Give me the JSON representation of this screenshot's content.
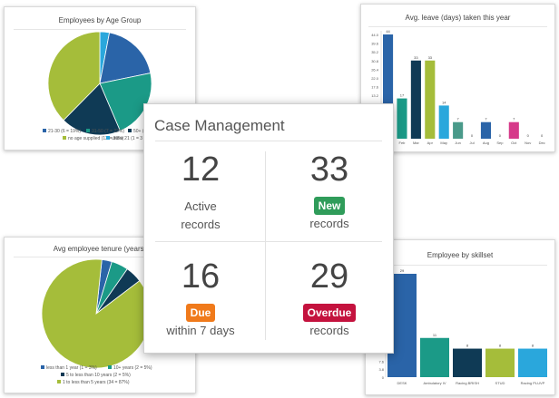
{
  "colors": {
    "navy": "#0f3a55",
    "blue": "#2a64a8",
    "teal": "#1b9a87",
    "olive": "#a5bd3a",
    "lightblue": "#2aa7dc",
    "pink": "#d63a8a",
    "new_badge": "#2f9c5a",
    "due_badge": "#f07a1b",
    "overdue_badge": "#c4123e"
  },
  "age_chart": {
    "title": "Employees by Age Group",
    "chart_data": {
      "type": "pie",
      "title": "Employees by Age Group",
      "slices": [
        {
          "name": "21-30 (6 = 19%)",
          "value": 19,
          "color": "#2a64a8"
        },
        {
          "name": "31-50 (7 = 22%)",
          "value": 22,
          "color": "#1b9a87"
        },
        {
          "name": "50+ (6 = 1",
          "value": 19,
          "color": "#0f3a55"
        },
        {
          "name": "no age supplied (12 = 38%)",
          "value": 38,
          "color": "#a5bd3a"
        },
        {
          "name": "under 21 (1 = 3",
          "value": 3,
          "color": "#2aa7dc"
        }
      ]
    }
  },
  "leave_chart": {
    "title": "Avg. leave (days) taken this year",
    "chart_data": {
      "type": "bar",
      "title": "Avg. leave (days) taken this year",
      "categories": [
        "",
        "Feb",
        "Mar",
        "Apr",
        "May",
        "Jun",
        "Jul",
        "Aug",
        "Sep",
        "Oct",
        "Nov",
        "Dec"
      ],
      "values": [
        44,
        17,
        33,
        33,
        14,
        7,
        0,
        7,
        0,
        7,
        0,
        0
      ],
      "data_labels": [
        "44",
        "17",
        "33",
        "33",
        "14",
        "7",
        "0",
        "7",
        "0",
        "7",
        "0",
        "0"
      ],
      "colors": [
        "#2a64a8",
        "#1b9a87",
        "#0f3a55",
        "#a5bd3a",
        "#2aa7dc",
        "#4a9a8a",
        "#888888",
        "#2a64a8",
        "#888888",
        "#d63a8a",
        "#888888",
        "#888888"
      ],
      "ylim": [
        0,
        44
      ],
      "yticks": [
        "44.0",
        "39.6",
        "35.2",
        "30.8",
        "26.4",
        "22.0",
        "17.6",
        "13.2"
      ]
    }
  },
  "tenure_chart": {
    "title": "Avg employee tenure (years)",
    "chart_data": {
      "type": "pie",
      "title": "Avg employee tenure (years)",
      "slices": [
        {
          "name": "1 to less than 5 years (34 = 87%)",
          "value": 87,
          "color": "#a5bd3a"
        },
        {
          "name": "less than 1 year (1 = 3%)",
          "value": 3,
          "color": "#2a64a8"
        },
        {
          "name": "10+ years (2 = 5%)",
          "value": 5,
          "color": "#1b9a87"
        },
        {
          "name": "5 to less than 10 years (2 = 5%)",
          "value": 5,
          "color": "#0f3a55"
        }
      ]
    }
  },
  "skill_chart": {
    "title": "Employee by skillset",
    "chart_data": {
      "type": "bar",
      "title": "Employee by skillset",
      "categories": [
        "DESK",
        "Ambulatory IV",
        "Racing BRISH",
        "STUD",
        "Racing PLUVP"
      ],
      "values": [
        29,
        11,
        8,
        8,
        8
      ],
      "data_labels": [
        "29",
        "11",
        "8",
        "8",
        "8"
      ],
      "colors": [
        "#2a64a8",
        "#1b9a87",
        "#0f3a55",
        "#a5bd3a",
        "#2aa7dc"
      ],
      "ylim": [
        0,
        29
      ],
      "yticks": [
        "29",
        "",
        "",
        "",
        "",
        "",
        "",
        "",
        "",
        "",
        "",
        "7.6",
        "3.8",
        "0"
      ]
    }
  },
  "case_management": {
    "title": "Case Management",
    "active": {
      "count": "12",
      "line1": "Active",
      "line2": "records"
    },
    "new": {
      "count": "33",
      "badge": "New",
      "line2": "records"
    },
    "due": {
      "count": "16",
      "badge": "Due",
      "line2": "within 7 days"
    },
    "overdue": {
      "count": "29",
      "badge": "Overdue",
      "line2": "records"
    }
  }
}
